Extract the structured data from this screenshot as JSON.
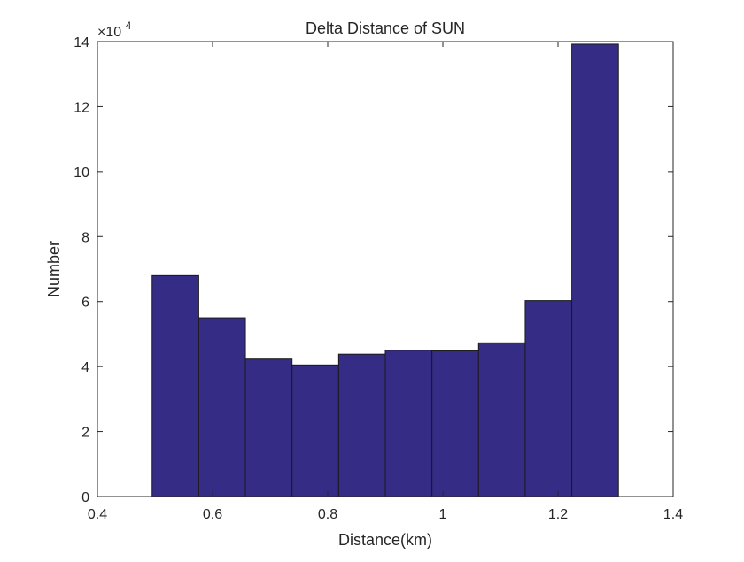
{
  "chart_data": {
    "type": "bar",
    "title": "Delta Distance of SUN",
    "xlabel": "Distance(km)",
    "ylabel": "Number",
    "xlim": [
      0.4,
      1.4
    ],
    "ylim": [
      0,
      140000
    ],
    "xticks": [
      0.4,
      0.6,
      0.8,
      1.0,
      1.2,
      1.4
    ],
    "xtick_labels": [
      "0.4",
      "0.6",
      "0.8",
      "1",
      "1.2",
      "1.4"
    ],
    "yticks": [
      0,
      20000,
      40000,
      60000,
      80000,
      100000,
      120000,
      140000
    ],
    "ytick_labels": [
      "0",
      "2",
      "4",
      "6",
      "8",
      "10",
      "12",
      "14"
    ],
    "y_exponent_base": "×10",
    "y_exponent_power": "4",
    "bin_edges": [
      0.495,
      0.576,
      0.657,
      0.738,
      0.819,
      0.9,
      0.981,
      1.062,
      1.143,
      1.224,
      1.305
    ],
    "values": [
      68000,
      55000,
      42300,
      40500,
      43800,
      45000,
      44800,
      47300,
      60300,
      139200
    ],
    "grid": false,
    "bar_color": "#352c85",
    "edge_color": "#1a1a1a",
    "axis_color": "#262626"
  }
}
